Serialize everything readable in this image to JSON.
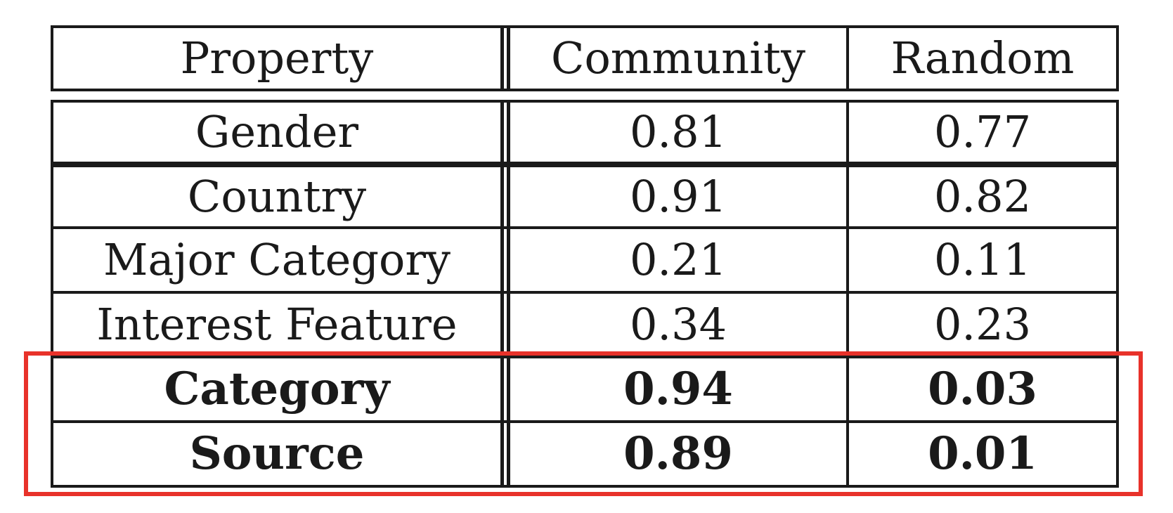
{
  "table": {
    "headers": [
      "Property",
      "Community",
      "Random"
    ],
    "rows": [
      {
        "property": "Gender",
        "community": "0.81",
        "random": "0.77"
      },
      {
        "property": "Country",
        "community": "0.91",
        "random": "0.82"
      },
      {
        "property": "Major Category",
        "community": "0.21",
        "random": "0.11"
      },
      {
        "property": "Interest Feature",
        "community": "0.34",
        "random": "0.23"
      },
      {
        "property": "Category",
        "community": "0.94",
        "random": "0.03"
      },
      {
        "property": "Source",
        "community": "0.89",
        "random": "0.01"
      }
    ]
  },
  "highlight": {
    "color": "#e8322a",
    "rows": [
      "Category",
      "Source"
    ]
  }
}
